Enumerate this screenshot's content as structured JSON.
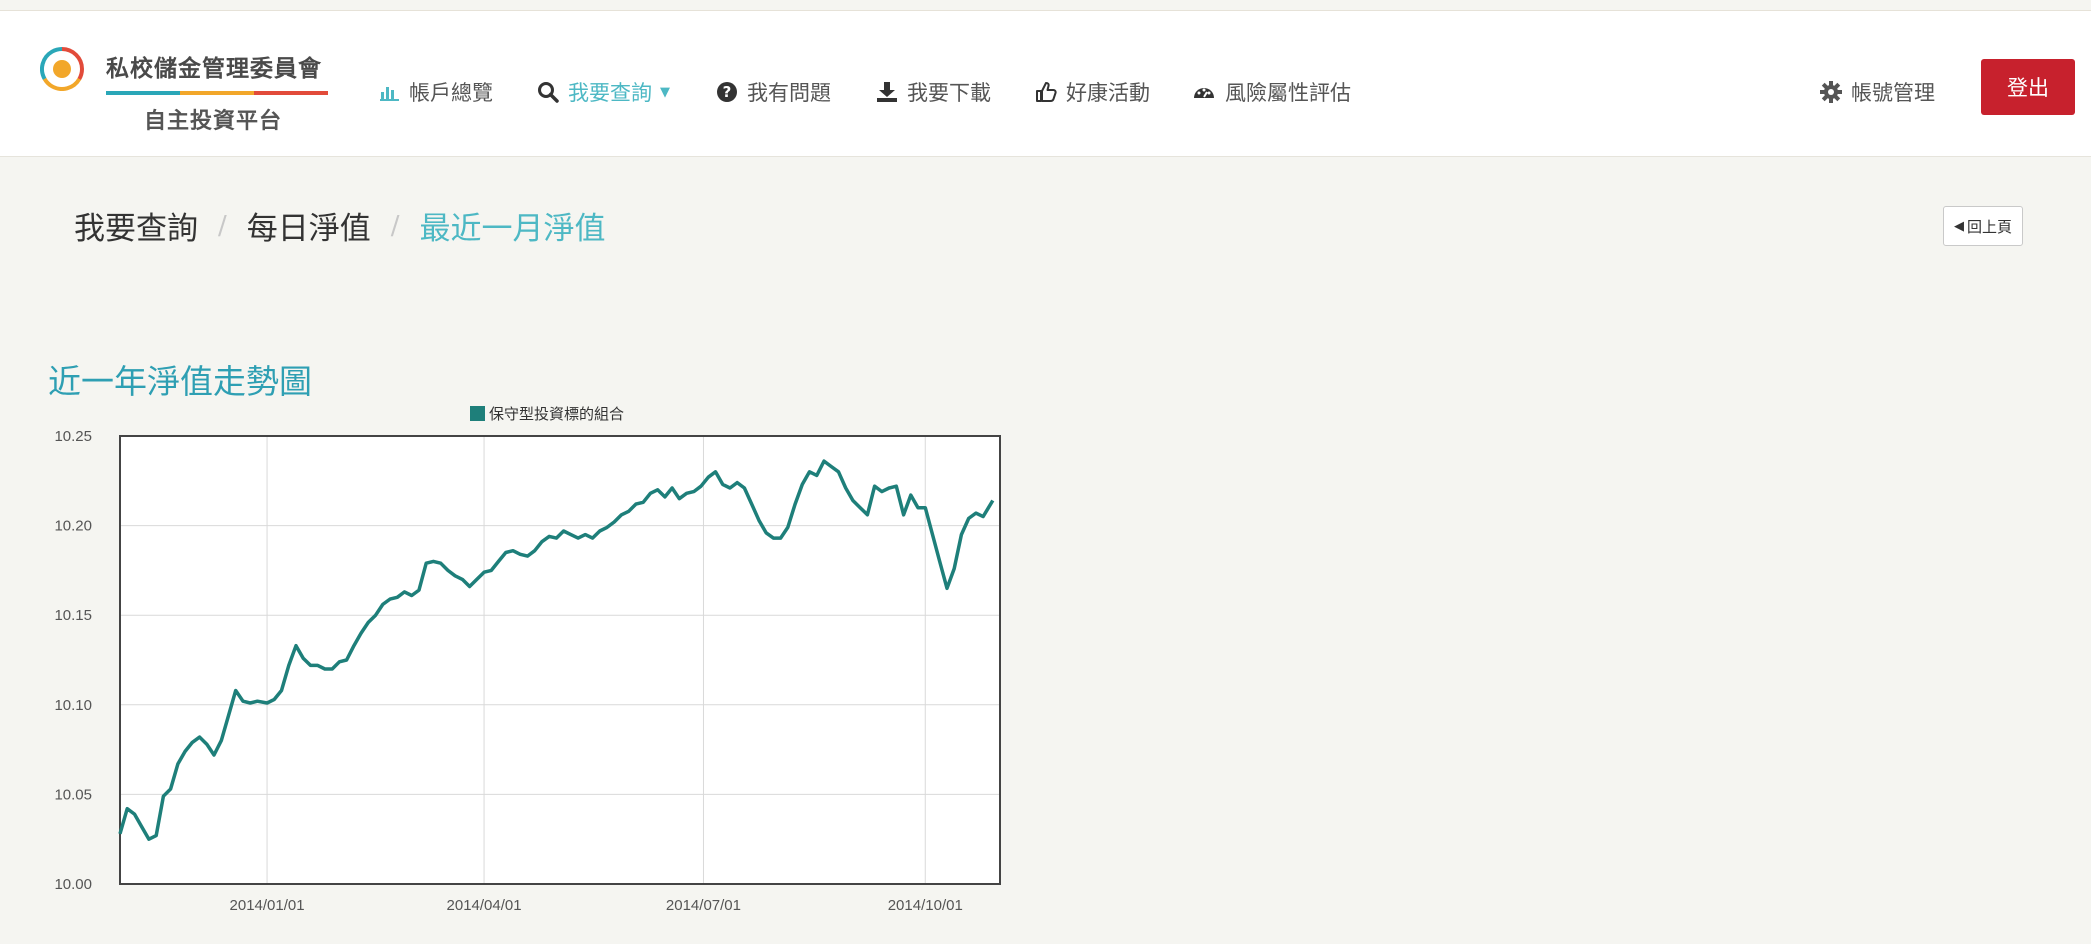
{
  "brand": {
    "name_top": "私校儲金管理委員會",
    "name_bottom": "自主投資平台",
    "colors": [
      "#2aa7b8",
      "#f2a72a",
      "#e24b3a"
    ]
  },
  "nav": {
    "items": [
      {
        "label": "帳戶總覽",
        "icon": "bar-chart-icon"
      },
      {
        "label": "我要查詢",
        "icon": "search-icon",
        "active": true
      },
      {
        "label": "我有問題",
        "icon": "question-circle-icon"
      },
      {
        "label": "我要下載",
        "icon": "download-icon"
      },
      {
        "label": "好康活動",
        "icon": "thumbs-up-icon"
      },
      {
        "label": "風險屬性評估",
        "icon": "dashboard-icon"
      }
    ],
    "account_label": "帳號管理",
    "logout_label": "登出"
  },
  "breadcrumb": {
    "items": [
      "我要查詢",
      "每日淨值",
      "最近一月淨值"
    ],
    "separator": "/"
  },
  "back_button_label": "回上頁",
  "section_title": "近一年淨值走勢圖",
  "chart_data": {
    "type": "line",
    "legend": [
      "保守型投資標的組合"
    ],
    "legend_position": "top-center",
    "series_color": "#1e7f7a",
    "x_range": [
      "2013-11-01",
      "2014-11-01"
    ],
    "y_range": [
      10.0,
      10.25
    ],
    "grid": true,
    "x_ticks": [
      "2014/01/01",
      "2014/04/01",
      "2014/07/01",
      "2014/10/01"
    ],
    "y_ticks": [
      "10.00",
      "10.05",
      "10.10",
      "10.15",
      "10.20",
      "10.25"
    ],
    "series": [
      {
        "name": "保守型投資標的組合",
        "points": [
          [
            "2013-11-01",
            10.028
          ],
          [
            "2013-11-04",
            10.042
          ],
          [
            "2013-11-07",
            10.039
          ],
          [
            "2013-11-10",
            10.032
          ],
          [
            "2013-11-13",
            10.025
          ],
          [
            "2013-11-16",
            10.027
          ],
          [
            "2013-11-19",
            10.049
          ],
          [
            "2013-11-22",
            10.053
          ],
          [
            "2013-11-25",
            10.067
          ],
          [
            "2013-11-28",
            10.074
          ],
          [
            "2013-12-01",
            10.079
          ],
          [
            "2013-12-04",
            10.082
          ],
          [
            "2013-12-07",
            10.078
          ],
          [
            "2013-12-10",
            10.072
          ],
          [
            "2013-12-13",
            10.08
          ],
          [
            "2013-12-16",
            10.094
          ],
          [
            "2013-12-19",
            10.108
          ],
          [
            "2013-12-22",
            10.102
          ],
          [
            "2013-12-25",
            10.101
          ],
          [
            "2013-12-28",
            10.102
          ],
          [
            "2014-01-01",
            10.101
          ],
          [
            "2014-01-04",
            10.103
          ],
          [
            "2014-01-07",
            10.108
          ],
          [
            "2014-01-10",
            10.122
          ],
          [
            "2014-01-13",
            10.133
          ],
          [
            "2014-01-16",
            10.126
          ],
          [
            "2014-01-19",
            10.122
          ],
          [
            "2014-01-22",
            10.122
          ],
          [
            "2014-01-25",
            10.12
          ],
          [
            "2014-01-28",
            10.12
          ],
          [
            "2014-01-31",
            10.124
          ],
          [
            "2014-02-03",
            10.125
          ],
          [
            "2014-02-06",
            10.133
          ],
          [
            "2014-02-09",
            10.14
          ],
          [
            "2014-02-12",
            10.146
          ],
          [
            "2014-02-15",
            10.15
          ],
          [
            "2014-02-18",
            10.156
          ],
          [
            "2014-02-21",
            10.159
          ],
          [
            "2014-02-24",
            10.16
          ],
          [
            "2014-02-27",
            10.163
          ],
          [
            "2014-03-02",
            10.161
          ],
          [
            "2014-03-05",
            10.164
          ],
          [
            "2014-03-08",
            10.179
          ],
          [
            "2014-03-11",
            10.18
          ],
          [
            "2014-03-14",
            10.179
          ],
          [
            "2014-03-17",
            10.175
          ],
          [
            "2014-03-20",
            10.172
          ],
          [
            "2014-03-23",
            10.17
          ],
          [
            "2014-03-26",
            10.166
          ],
          [
            "2014-03-29",
            10.17
          ],
          [
            "2014-04-01",
            10.174
          ],
          [
            "2014-04-04",
            10.175
          ],
          [
            "2014-04-07",
            10.18
          ],
          [
            "2014-04-10",
            10.185
          ],
          [
            "2014-04-13",
            10.186
          ],
          [
            "2014-04-16",
            10.184
          ],
          [
            "2014-04-19",
            10.183
          ],
          [
            "2014-04-22",
            10.186
          ],
          [
            "2014-04-25",
            10.191
          ],
          [
            "2014-04-28",
            10.194
          ],
          [
            "2014-05-01",
            10.193
          ],
          [
            "2014-05-04",
            10.197
          ],
          [
            "2014-05-07",
            10.195
          ],
          [
            "2014-05-10",
            10.193
          ],
          [
            "2014-05-13",
            10.195
          ],
          [
            "2014-05-16",
            10.193
          ],
          [
            "2014-05-19",
            10.197
          ],
          [
            "2014-05-22",
            10.199
          ],
          [
            "2014-05-25",
            10.202
          ],
          [
            "2014-05-28",
            10.206
          ],
          [
            "2014-05-31",
            10.208
          ],
          [
            "2014-06-03",
            10.212
          ],
          [
            "2014-06-06",
            10.213
          ],
          [
            "2014-06-09",
            10.218
          ],
          [
            "2014-06-12",
            10.22
          ],
          [
            "2014-06-15",
            10.216
          ],
          [
            "2014-06-18",
            10.221
          ],
          [
            "2014-06-21",
            10.215
          ],
          [
            "2014-06-24",
            10.218
          ],
          [
            "2014-06-27",
            10.219
          ],
          [
            "2014-06-30",
            10.222
          ],
          [
            "2014-07-03",
            10.227
          ],
          [
            "2014-07-06",
            10.23
          ],
          [
            "2014-07-09",
            10.223
          ],
          [
            "2014-07-12",
            10.221
          ],
          [
            "2014-07-15",
            10.224
          ],
          [
            "2014-07-18",
            10.221
          ],
          [
            "2014-07-21",
            10.212
          ],
          [
            "2014-07-24",
            10.203
          ],
          [
            "2014-07-27",
            10.196
          ],
          [
            "2014-07-30",
            10.193
          ],
          [
            "2014-08-02",
            10.193
          ],
          [
            "2014-08-05",
            10.199
          ],
          [
            "2014-08-08",
            10.212
          ],
          [
            "2014-08-11",
            10.223
          ],
          [
            "2014-08-14",
            10.23
          ],
          [
            "2014-08-17",
            10.228
          ],
          [
            "2014-08-20",
            10.236
          ],
          [
            "2014-08-23",
            10.233
          ],
          [
            "2014-08-26",
            10.23
          ],
          [
            "2014-08-29",
            10.221
          ],
          [
            "2014-09-01",
            10.214
          ],
          [
            "2014-09-04",
            10.21
          ],
          [
            "2014-09-07",
            10.206
          ],
          [
            "2014-09-10",
            10.222
          ],
          [
            "2014-09-13",
            10.219
          ],
          [
            "2014-09-16",
            10.221
          ],
          [
            "2014-09-19",
            10.222
          ],
          [
            "2014-09-22",
            10.206
          ],
          [
            "2014-09-25",
            10.217
          ],
          [
            "2014-09-28",
            10.21
          ],
          [
            "2014-10-01",
            10.21
          ],
          [
            "2014-10-04",
            10.195
          ],
          [
            "2014-10-07",
            10.18
          ],
          [
            "2014-10-10",
            10.165
          ],
          [
            "2014-10-13",
            10.176
          ],
          [
            "2014-10-16",
            10.195
          ],
          [
            "2014-10-19",
            10.204
          ],
          [
            "2014-10-22",
            10.207
          ],
          [
            "2014-10-25",
            10.205
          ],
          [
            "2014-10-29",
            10.214
          ]
        ]
      }
    ]
  }
}
